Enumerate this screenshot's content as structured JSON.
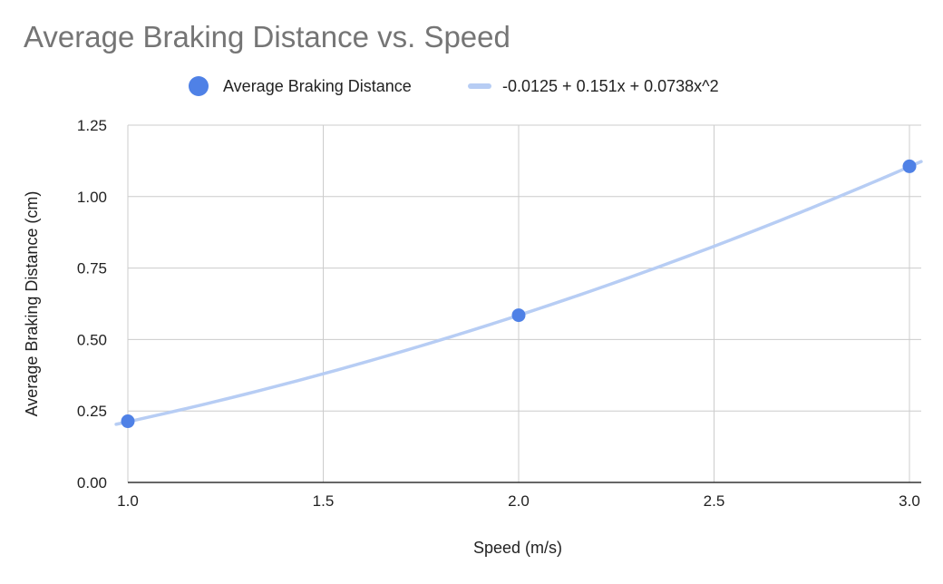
{
  "chart_data": {
    "type": "scatter",
    "title": "Average Braking Distance vs. Speed",
    "xlabel": "Speed (m/s)",
    "ylabel": "Average Braking Distance (cm)",
    "xlim": [
      1.0,
      3.0
    ],
    "ylim": [
      0.0,
      1.25
    ],
    "x_ticks": [
      1.0,
      1.5,
      2.0,
      2.5,
      3.0
    ],
    "x_tick_labels": [
      "1.0",
      "1.5",
      "2.0",
      "2.5",
      "3.0"
    ],
    "y_ticks": [
      0.0,
      0.25,
      0.5,
      0.75,
      1.0,
      1.25
    ],
    "y_tick_labels": [
      "0.00",
      "0.25",
      "0.50",
      "0.75",
      "1.00",
      "1.25"
    ],
    "grid": true,
    "legend_position": "top",
    "series": [
      {
        "name": "Average Braking Distance",
        "kind": "points",
        "color": "#4f81e6",
        "points": [
          {
            "x": 1.0,
            "y": 0.214
          },
          {
            "x": 2.0,
            "y": 0.585
          },
          {
            "x": 3.0,
            "y": 1.106
          }
        ]
      },
      {
        "name": "-0.0125 + 0.151x + 0.0738x^2",
        "kind": "trendline",
        "color": "#b7cdf4",
        "coefficients": [
          -0.0125,
          0.151,
          0.0738
        ],
        "x_range": [
          0.97,
          3.03
        ]
      }
    ]
  }
}
